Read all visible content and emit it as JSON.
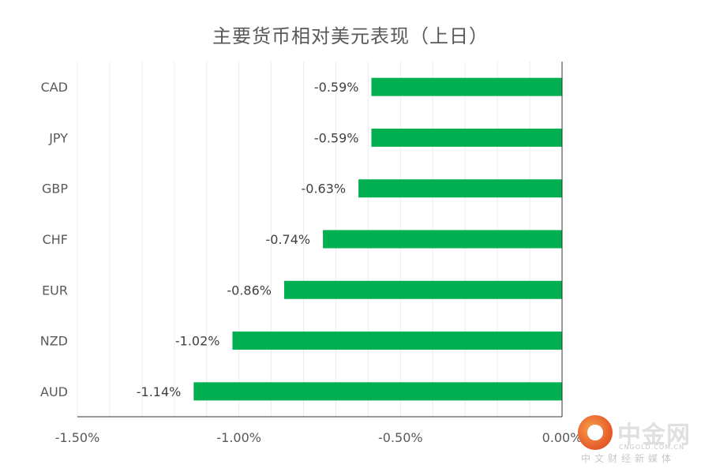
{
  "chart_data": {
    "type": "bar",
    "orientation": "horizontal",
    "title": "主要货币相对美元表现（上日）",
    "categories": [
      "CAD",
      "JPY",
      "GBP",
      "CHF",
      "EUR",
      "NZD",
      "AUD"
    ],
    "values": [
      -0.59,
      -0.59,
      -0.63,
      -0.74,
      -0.86,
      -1.02,
      -1.14
    ],
    "data_labels": [
      "-0.59%",
      "-0.59%",
      "-0.63%",
      "-0.74%",
      "-0.86%",
      "-1.02%",
      "-1.14%"
    ],
    "xlim": [
      -1.5,
      0
    ],
    "x_ticks": [
      -1.5,
      -1.0,
      -0.5,
      0.0
    ],
    "x_tick_labels": [
      "-1.50%",
      "-1.00%",
      "-0.50%",
      "0.00%"
    ],
    "grid": true,
    "legend": "none",
    "bar_color": "#00b050"
  },
  "watermark": {
    "brand": "中金网",
    "domain": "CNGOLD.COM.CN",
    "slogan": "中文财经新媒体"
  }
}
